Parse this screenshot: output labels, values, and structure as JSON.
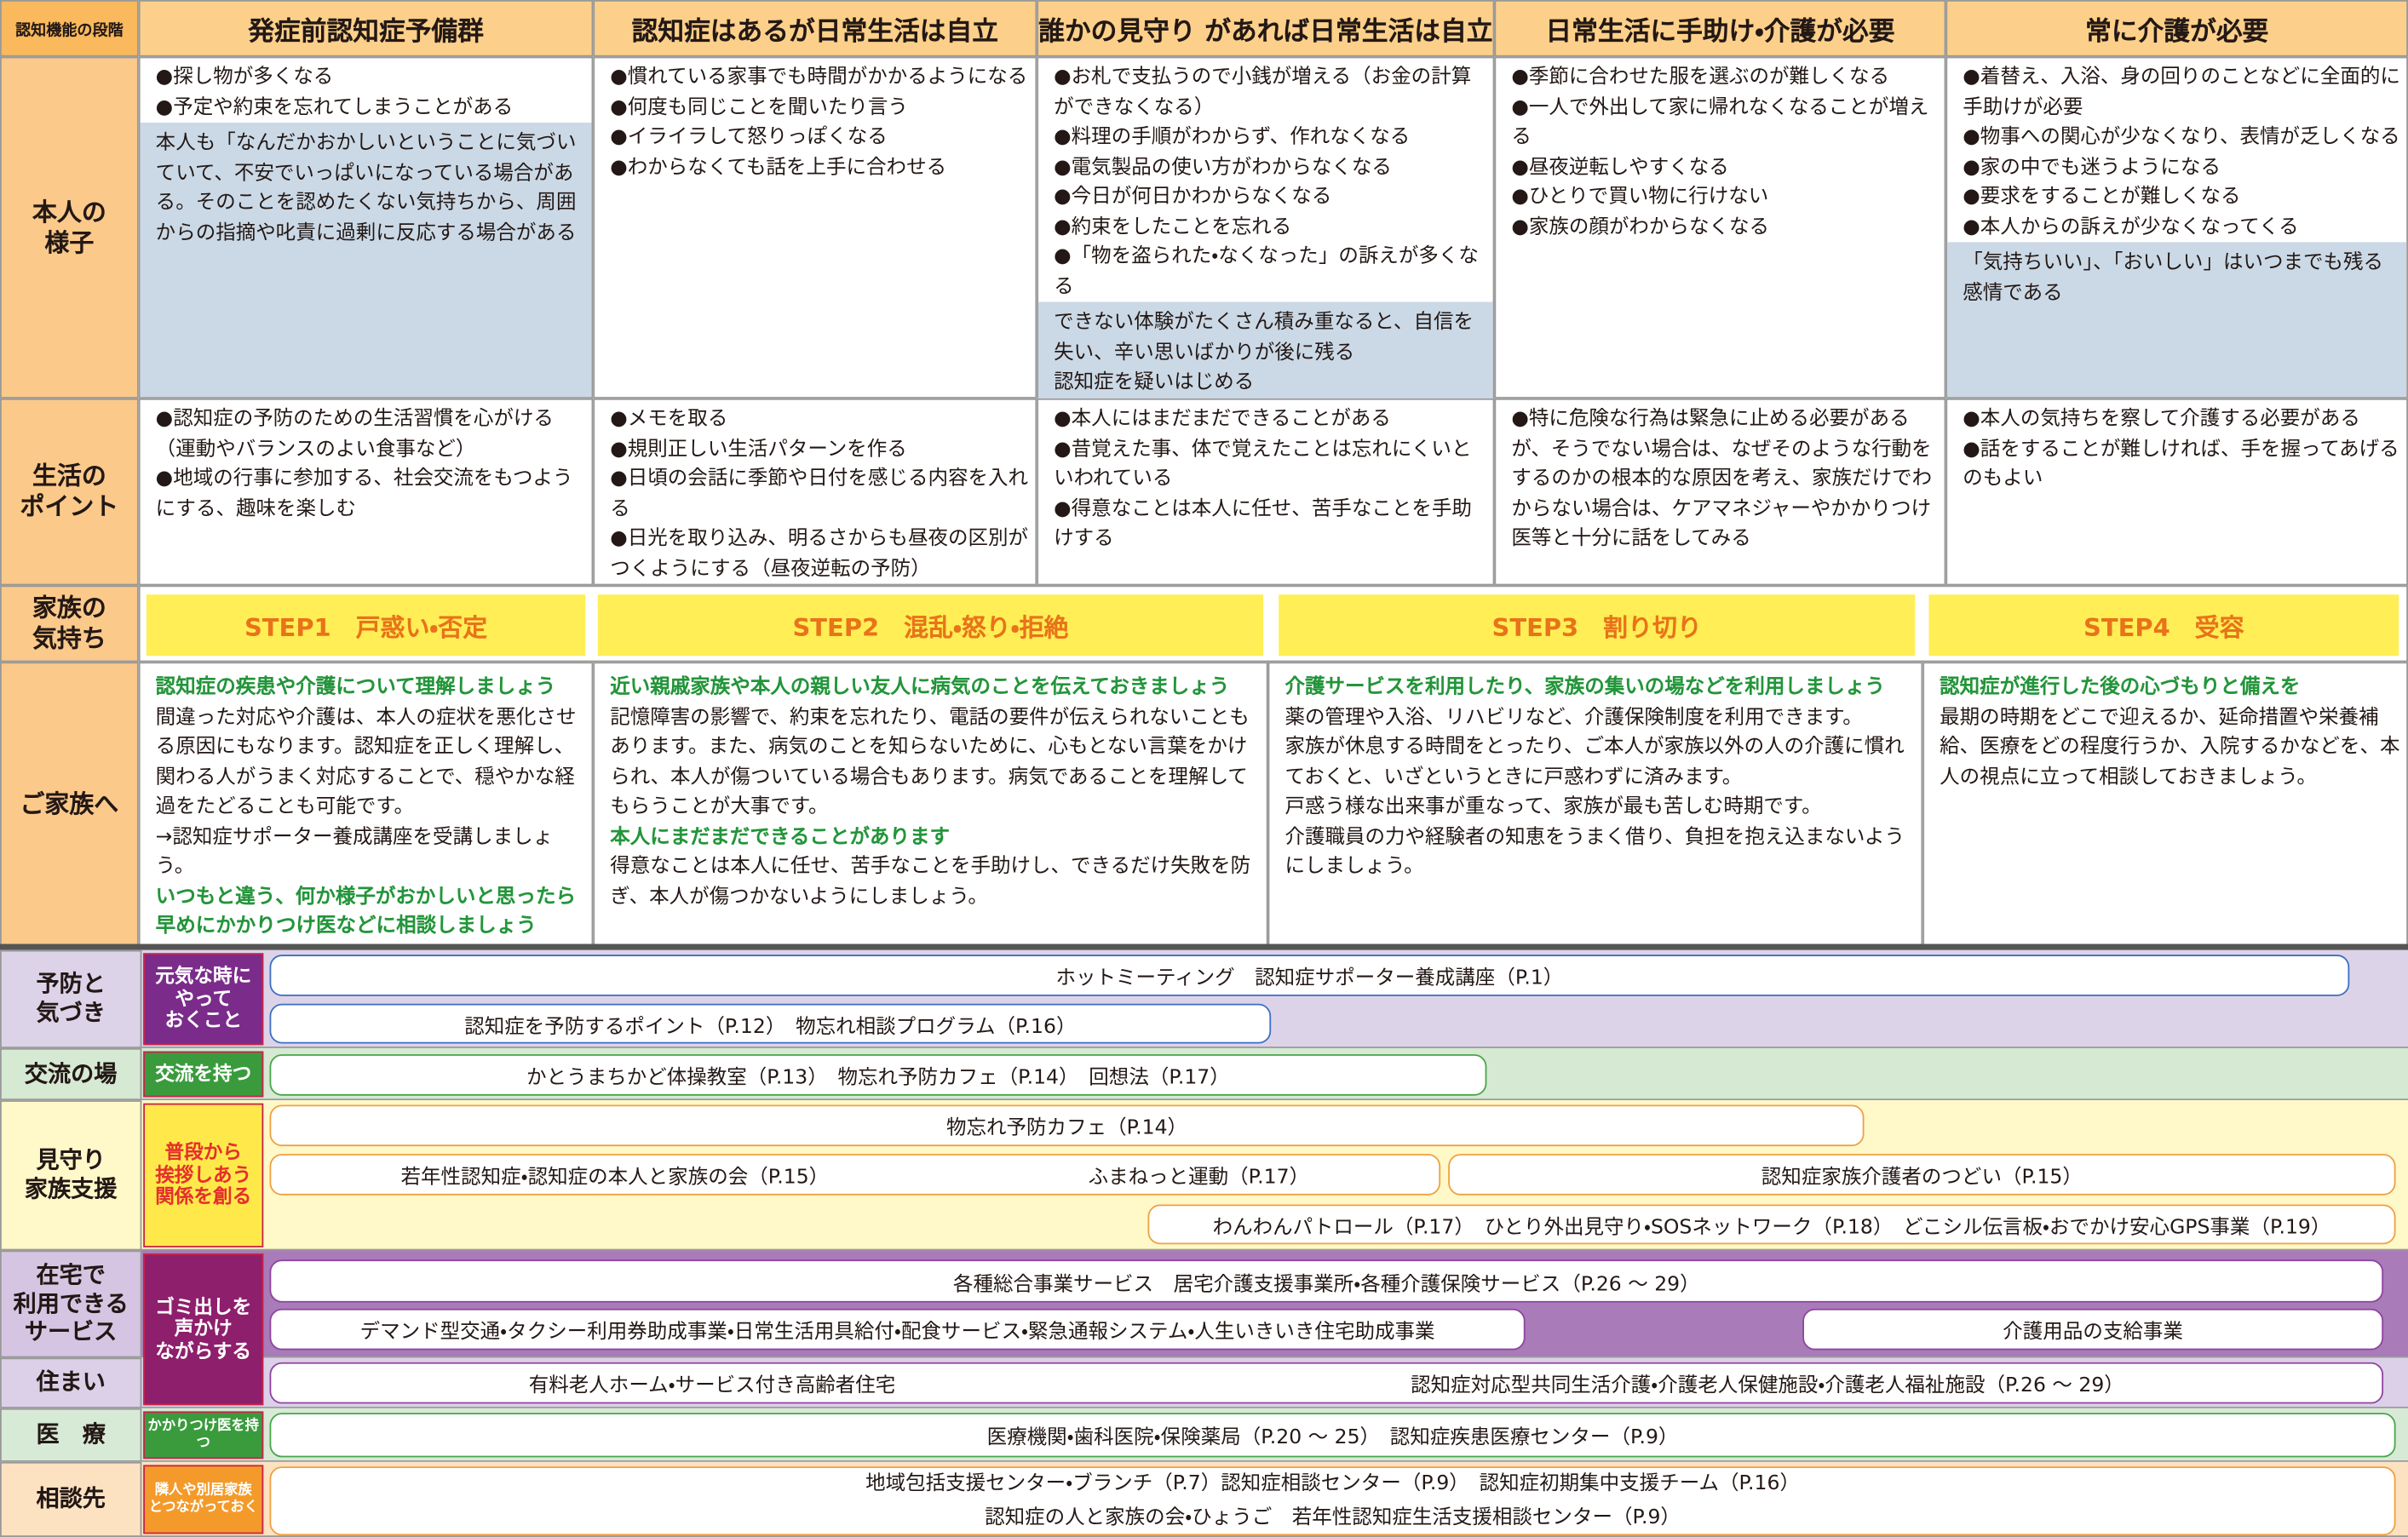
{
  "header": {
    "stage_label": "認知機能の段階",
    "stages": [
      "発症前認知症予備群",
      "認知症はあるが日常生活は自立",
      "誰かの見守り があれば日常生活は自立",
      "日常生活に手助け・介護が必要",
      "常に介護が必要"
    ]
  },
  "condition": {
    "label": "本人の\n様子",
    "cells": [
      {
        "items": [
          "●探し物が多くなる",
          "●予定や約束を忘れてしまうことがある"
        ],
        "note": "本人も「なんだかおかしいということに気づいていて、不安でいっぱいになっている場合がある。そのことを認めたくない気持ちから、周囲からの指摘や叱責に過剰に反応する場合がある"
      },
      {
        "items": [
          "●慣れている家事でも時間がかかるようになる",
          "●何度も同じことを聞いたり言う",
          "●イライラして怒りっぽくなる",
          "●わからなくても話を上手に合わせる"
        ]
      },
      {
        "items": [
          "●お札で支払うので小銭が増える（お金の計算ができなくなる）",
          "●料理の手順がわからず、作れなくなる",
          "●電気製品の使い方がわからなくなる",
          "●今日が何日かわからなくなる",
          "●約束をしたことを忘れる",
          "●「物を盗られた・なくなった」の訴えが多くなる"
        ],
        "note": "できない体験がたくさん積み重なると、自信を失い、辛い思いばかりが後に残る\n認知症を疑いはじめる"
      },
      {
        "items": [
          "●季節に合わせた服を選ぶのが難しくなる",
          "●一人で外出して家に帰れなくなることが増える",
          "●昼夜逆転しやすくなる",
          "●ひとりで買い物に行けない",
          "●家族の顔がわからなくなる"
        ]
      },
      {
        "items": [
          "●着替え、入浴、身の回りのことなどに全面的に手助けが必要",
          "●物事への関心が少なくなり、表情が乏しくなる",
          "●家の中でも迷うようになる",
          "●要求をすることが難しくなる",
          "●本人からの訴えが少なくなってくる"
        ],
        "note": "「気持ちいい」、「おいしい」はいつまでも残る感情である"
      }
    ]
  },
  "points": {
    "label": "生活の\nポイント",
    "cells": [
      [
        "●認知症の予防のための生活習慣を心がける（運動やバランスのよい食事など）",
        "●地域の行事に参加する、社会交流をもつようにする、趣味を楽しむ"
      ],
      [
        "●メモを取る",
        "●規則正しい生活パターンを作る",
        "●日頃の会話に季節や日付を感じる内容を入れる",
        "●日光を取り込み、明るさからも昼夜の区別がつくようにする（昼夜逆転の予防）"
      ],
      [
        "●本人にはまだまだできることがある",
        "●昔覚えた事、体で覚えたことは忘れにくいといわれている",
        "●得意なことは本人に任せ、苦手なことを手助けする"
      ],
      [
        "●特に危険な行為は緊急に止める必要があるが、そうでない場合は、なぜそのような行動をするのかの根本的な原因を考え、家族だけでわからない場合は、ケアマネジャーやかかりつけ医等と十分に話をしてみる"
      ],
      [
        "●本人の気持ちを察して介護する必要がある",
        "●話をすることが難しければ、手を握ってあげるのもよい"
      ]
    ]
  },
  "feelings": {
    "label": "家族の\n気持ち",
    "steps": [
      "STEP1　戸惑い・否定",
      "STEP2　混乱・怒り・拒絶",
      "STEP3　割り切り",
      "STEP4　受容"
    ]
  },
  "advice": {
    "label": "ご家族へ",
    "cells": [
      [
        {
          "text": "認知症の疾患や介護について理解しましょう",
          "emphasis": true
        },
        {
          "text": "間違った対応や介護は、本人の症状を悪化させる原因にもなります。認知症を正しく理解し、関わる人がうまく対応することで、穏やかな経過をたどることも可能です。\n→認知症サポーター養成講座を受講しましょう。",
          "emphasis": false
        },
        {
          "text": "いつもと違う、何か様子がおかしいと思ったら早めにかかりつけ医などに相談しましょう",
          "emphasis": true
        }
      ],
      [
        {
          "text": "近い親戚家族や本人の親しい友人に病気のことを伝えておきましょう",
          "emphasis": true
        },
        {
          "text": "記憶障害の影響で、約束を忘れたり、電話の要件が伝えられないこともあります。また、病気のことを知らないために、心もとない言葉をかけられ、本人が傷ついている場合もあります。病気であることを理解してもらうことが大事です。",
          "emphasis": false
        },
        {
          "text": "本人にまだまだできることがあります",
          "emphasis": true
        },
        {
          "text": "得意なことは本人に任せ、苦手なことを手助けし、できるだけ失敗を防ぎ、本人が傷つかないようにしましょう。",
          "emphasis": false
        }
      ],
      [
        {
          "text": "介護サービスを利用したり、家族の集いの場などを利用しましょう",
          "emphasis": true
        },
        {
          "text": "薬の管理や入浴、リハビリなど、介護保険制度を利用できます。\n家族が休息する時間をとったり、ご本人が家族以外の人の介護に慣れておくと、いざというときに戸惑わずに済みます。\n戸惑う様な出来事が重なって、家族が最も苦しむ時期です。\n介護職員の力や経験者の知恵をうまく借り、負担を抱え込まないようにしましょう。",
          "emphasis": false
        }
      ],
      [
        {
          "text": "認知症が進行した後の心づもりと備えを",
          "emphasis": true
        },
        {
          "text": "最期の時期をどこで迎えるか、延命措置や栄養補給、医療をどの程度行うか、入院するかなどを、本人の視点に立って相談しておきましょう。",
          "emphasis": false
        }
      ]
    ]
  },
  "services": {
    "rows": [
      {
        "label": "予防と\n気づき",
        "bars": [
          [
            "ホットミーティング　認知症サポーター養成講座（P.1）"
          ],
          [
            "認知症を予防するポイント（P.12）　物忘れ相談プログラム（P.16）"
          ]
        ]
      },
      {
        "label": "交流の場",
        "bars": [
          [
            "かとうまちかど体操教室（P.13）　物忘れ予防カフェ（P.14）　回想法（P.17）"
          ]
        ]
      },
      {
        "label": "見守り\n家族支援",
        "bars": [
          [
            "物忘れ予防カフェ（P.14）"
          ],
          [
            "若年性認知症・認知症の本人と家族の会（P.15）",
            "ふまねっと運動（P.17）"
          ],
          [
            "認知症家族介護者のつどい（P.15）"
          ],
          [
            "わんわんパトロール（P.17）　ひとり外出見守り・SOSネットワーク（P.18）　どこシル伝言板・おでかけ安心GPS事業（P.19）"
          ]
        ]
      },
      {
        "label": "在宅で\n利用できる\nサービス",
        "bars": [
          [
            "各種総合事業サービス　居宅介護支援事業所・各種介護保険サービス（P.26 ～ 29）"
          ],
          [
            "デマンド型交通・タクシー利用券助成事業・日常生活用具給付・配食サービス・緊急通報システム・人生いきいき住宅助成事業"
          ],
          [
            "介護用品の支給事業"
          ]
        ]
      },
      {
        "label": "住まい",
        "bars": [
          [
            "有料老人ホーム・サービス付き高齢者住宅",
            "認知症対応型共同生活介護・介護老人保健施設・介護老人福祉施設（P.26 ～ 29）"
          ]
        ]
      },
      {
        "label": "医　療",
        "bars": [
          [
            "医療機関・歯科医院・保険薬局（P.20 ～ 25）　認知症疾患医療センター（P.9）"
          ]
        ]
      },
      {
        "label": "相談先",
        "bars": [
          [
            "地域包括支援センター・ブランチ（P.7）認知症相談センター（P.9）　認知症初期集中支援チーム（P.16）",
            "認知症の人と家族の会・ひょうご　若年性認知症生活支援相談センター（P.9）"
          ]
        ]
      }
    ],
    "guides": [
      "元気な時に\nやって\nおくこと",
      "交流を持つ",
      "普段から\n挨拶しあう\n関係を創る",
      "ゴミ出しを\n声かけ\nながらする",
      "かかりつけ医を持つ",
      "隣人や別居家族\nとつながっておく"
    ]
  }
}
